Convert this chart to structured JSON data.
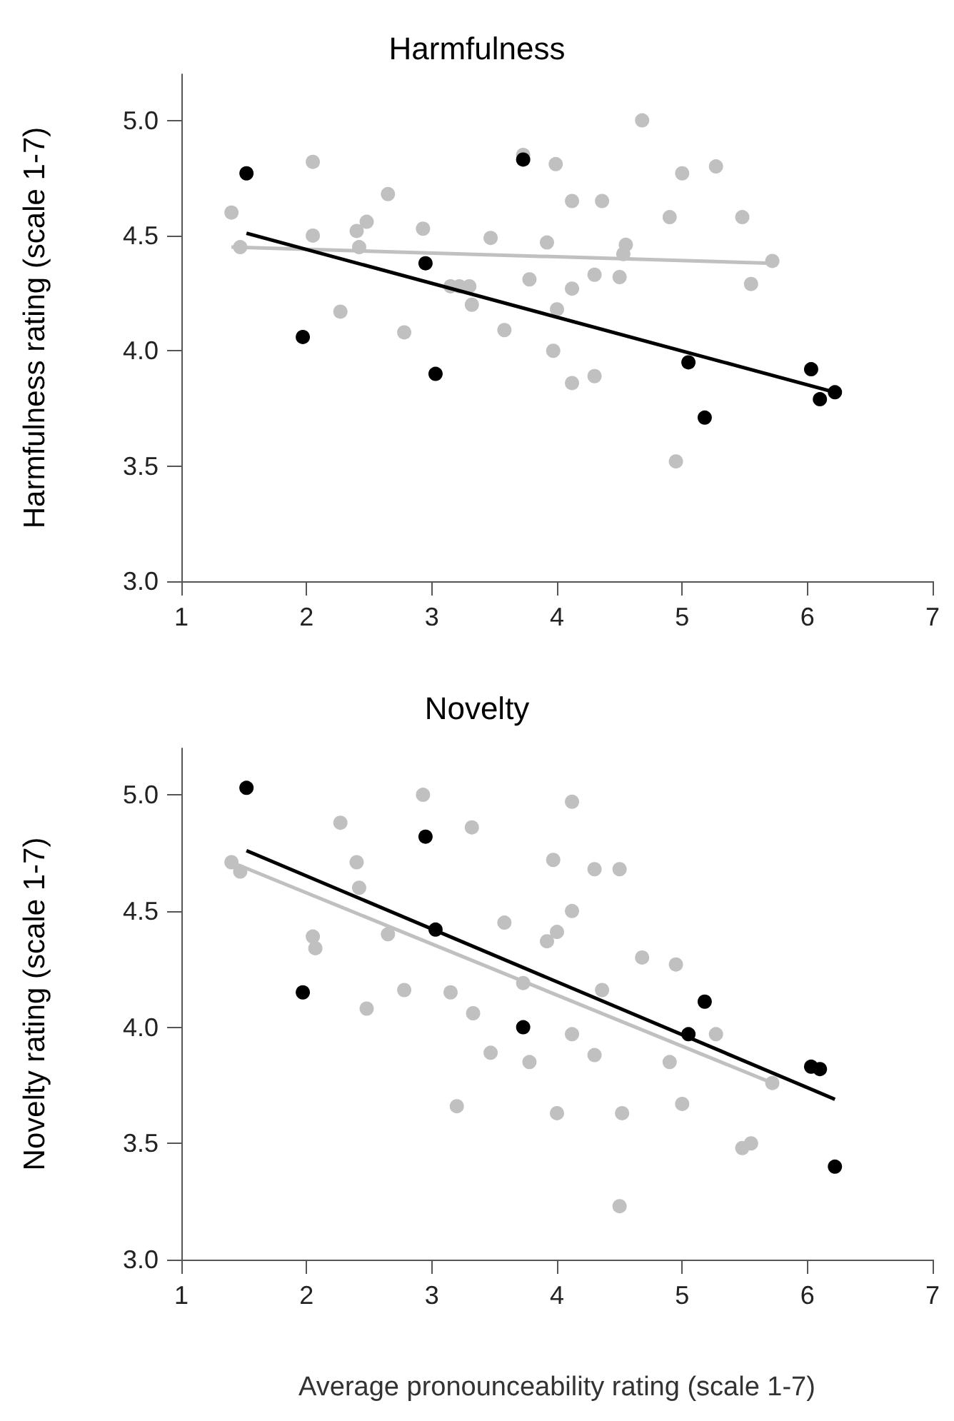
{
  "chart_data": [
    {
      "type": "scatter",
      "title": "Harmfulness",
      "ylabel": "Harmfulness rating (scale 1-7)",
      "xlim": [
        1,
        7
      ],
      "xticks": [
        1,
        2,
        3,
        4,
        5,
        6,
        7
      ],
      "ylim": [
        3,
        5.2
      ],
      "yticks": [
        {
          "value": 3,
          "label": "3.0"
        },
        {
          "value": 3.5,
          "label": "3.5"
        },
        {
          "value": 4,
          "label": "4.0"
        },
        {
          "value": 4.5,
          "label": "4.5"
        },
        {
          "value": 5,
          "label": "5.0"
        }
      ],
      "grid": false,
      "series": [
        {
          "marker": "circle",
          "color": "#c0c0c0",
          "x": [
            1.4,
            1.47,
            2.05,
            2.05,
            2.27,
            2.4,
            2.42,
            2.48,
            2.65,
            2.78,
            2.93,
            3.15,
            3.22,
            3.3,
            3.32,
            3.47,
            3.58,
            3.73,
            3.78,
            3.92,
            3.97,
            4.0,
            3.99,
            4.12,
            4.12,
            4.12,
            4.3,
            4.3,
            4.36,
            4.5,
            4.53,
            4.55,
            4.68,
            4.9,
            4.95,
            5.0,
            5.27,
            5.48,
            5.55,
            5.72
          ],
          "values": [
            4.6,
            4.45,
            4.82,
            4.5,
            4.17,
            4.52,
            4.45,
            4.56,
            4.68,
            4.08,
            4.53,
            4.28,
            4.28,
            4.28,
            4.2,
            4.49,
            4.09,
            4.85,
            4.31,
            4.47,
            4.0,
            4.18,
            4.81,
            3.86,
            4.65,
            4.27,
            4.33,
            3.89,
            4.65,
            4.32,
            4.42,
            4.46,
            5.0,
            4.58,
            3.52,
            4.77,
            4.8,
            4.58,
            4.29,
            4.39
          ]
        },
        {
          "marker": "circle",
          "color": "#000000",
          "x": [
            1.52,
            1.97,
            2.95,
            3.03,
            3.73,
            5.05,
            5.18,
            6.03,
            6.1,
            6.22
          ],
          "values": [
            4.77,
            4.06,
            4.38,
            3.9,
            4.83,
            3.95,
            3.71,
            3.92,
            3.79,
            3.82
          ]
        },
        {
          "type": "line",
          "color": "#c0c0c0",
          "x": [
            1.4,
            5.72
          ],
          "values": [
            4.45,
            4.38
          ]
        },
        {
          "type": "line",
          "color": "#000000",
          "x": [
            1.52,
            6.22
          ],
          "values": [
            4.51,
            3.82
          ]
        }
      ]
    },
    {
      "type": "scatter",
      "title": "Novelty",
      "ylabel": "Novelty rating (scale 1-7)",
      "xlabel": "Average pronounceability rating (scale 1-7)",
      "xlim": [
        1,
        7
      ],
      "xticks": [
        1,
        2,
        3,
        4,
        5,
        6,
        7
      ],
      "ylim": [
        3,
        5.2
      ],
      "yticks": [
        {
          "value": 3,
          "label": "3.0"
        },
        {
          "value": 3.5,
          "label": "3.5"
        },
        {
          "value": 4,
          "label": "4.0"
        },
        {
          "value": 4.5,
          "label": "4.5"
        },
        {
          "value": 5,
          "label": "5.0"
        }
      ],
      "grid": false,
      "series": [
        {
          "marker": "circle",
          "color": "#c0c0c0",
          "x": [
            1.4,
            1.47,
            2.05,
            2.07,
            2.27,
            2.4,
            2.42,
            2.48,
            2.65,
            2.78,
            2.93,
            3.15,
            3.2,
            3.32,
            3.33,
            3.47,
            3.58,
            3.73,
            3.78,
            3.92,
            3.97,
            4.0,
            4.0,
            4.12,
            4.12,
            4.12,
            4.3,
            4.3,
            4.36,
            4.5,
            4.52,
            4.5,
            4.68,
            4.9,
            4.95,
            5.0,
            5.27,
            5.48,
            5.55,
            5.72
          ],
          "values": [
            4.71,
            4.67,
            4.39,
            4.34,
            4.88,
            4.71,
            4.6,
            4.08,
            4.4,
            4.16,
            5.0,
            4.15,
            3.66,
            4.86,
            4.06,
            3.89,
            4.45,
            4.19,
            3.85,
            4.37,
            4.72,
            4.41,
            3.63,
            4.97,
            4.5,
            3.97,
            4.68,
            3.88,
            4.16,
            4.68,
            3.63,
            3.23,
            4.3,
            3.85,
            4.27,
            3.67,
            3.97,
            3.48,
            3.5,
            3.76
          ]
        },
        {
          "marker": "circle",
          "color": "#000000",
          "x": [
            1.52,
            1.97,
            2.95,
            3.03,
            3.73,
            5.05,
            5.18,
            6.03,
            6.1,
            6.22
          ],
          "values": [
            5.03,
            4.15,
            4.82,
            4.42,
            4.0,
            3.97,
            4.11,
            3.83,
            3.82,
            3.4
          ]
        },
        {
          "type": "line",
          "color": "#c0c0c0",
          "x": [
            1.4,
            5.72
          ],
          "values": [
            4.71,
            3.76
          ]
        },
        {
          "type": "line",
          "color": "#000000",
          "x": [
            1.52,
            6.22
          ],
          "values": [
            4.76,
            3.69
          ]
        }
      ]
    }
  ]
}
